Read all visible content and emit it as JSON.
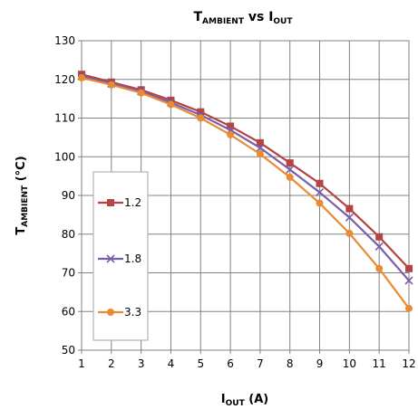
{
  "chart_data": {
    "type": "line",
    "title": {
      "main1": "T",
      "sub1": "AMBIENT",
      "main2": " vs I",
      "sub2": "OUT"
    },
    "xlabel": {
      "main": "I",
      "sub": "OUT",
      "rest": " (A)"
    },
    "ylabel": {
      "main": "T",
      "sub": "AMBIENT",
      "rest": " (°C)"
    },
    "x": [
      1,
      2,
      3,
      4,
      5,
      6,
      7,
      8,
      9,
      10,
      11,
      12
    ],
    "xlim": [
      1,
      12
    ],
    "ylim": [
      50,
      130
    ],
    "yticks": [
      50,
      60,
      70,
      80,
      90,
      100,
      110,
      120,
      130
    ],
    "xticks": [
      1,
      2,
      3,
      4,
      5,
      6,
      7,
      8,
      9,
      10,
      11,
      12
    ],
    "grid": true,
    "legend_position": "left-center",
    "series": [
      {
        "name": "1.2",
        "color": "#B54341",
        "marker": "square",
        "values": [
          121.3,
          119.3,
          117.3,
          114.6,
          111.6,
          107.9,
          103.6,
          98.4,
          93.1,
          86.6,
          79.3,
          71.1
        ]
      },
      {
        "name": "1.8",
        "color": "#7B5EA8",
        "marker": "x",
        "values": [
          120.8,
          118.9,
          116.9,
          114.0,
          110.8,
          106.9,
          102.3,
          96.7,
          90.8,
          84.3,
          76.8,
          68.0
        ]
      },
      {
        "name": "3.3",
        "color": "#E88C33",
        "marker": "circle",
        "values": [
          120.4,
          118.6,
          116.5,
          113.5,
          110.0,
          105.7,
          100.7,
          94.7,
          88.0,
          80.2,
          71.1,
          60.8
        ]
      }
    ]
  }
}
